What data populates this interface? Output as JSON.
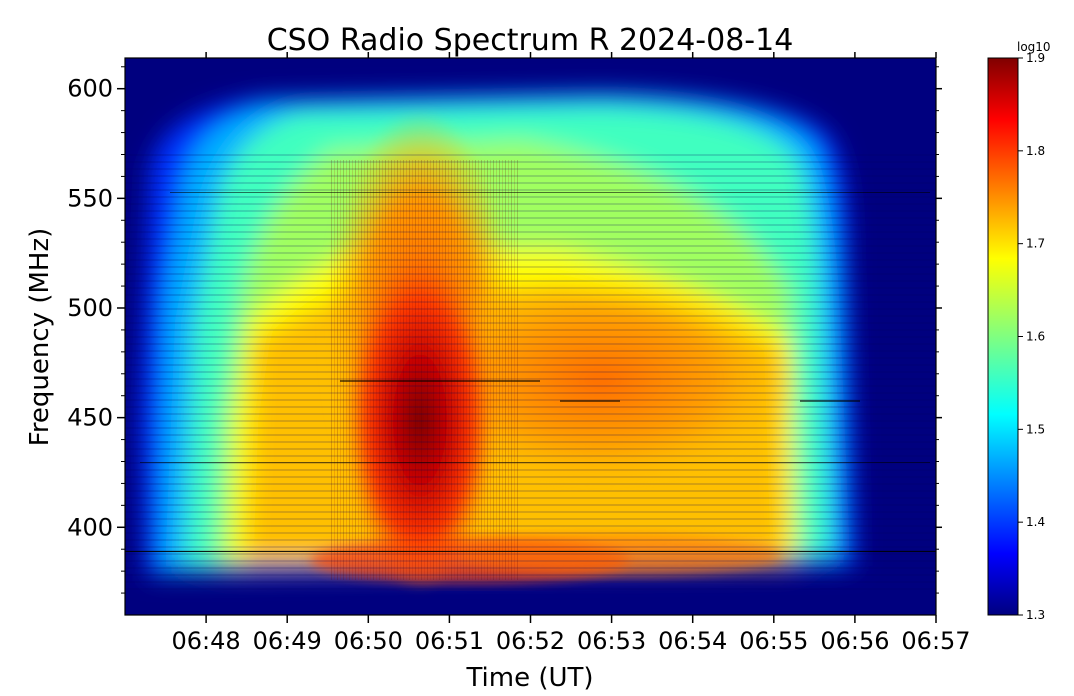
{
  "chart_data": {
    "type": "heatmap",
    "title": "CSO Radio Spectrum R 2024-08-14",
    "xlabel": "Time (UT)",
    "ylabel": "Frequency (MHz)",
    "x_ticks": [
      "06:48",
      "06:49",
      "06:50",
      "06:51",
      "06:52",
      "06:53",
      "06:54",
      "06:55",
      "06:56",
      "06:57"
    ],
    "y_ticks": [
      400,
      450,
      500,
      550,
      600
    ],
    "ylim": [
      360,
      614
    ],
    "xlim_minutes": [
      47.0,
      57.0
    ],
    "colorbar": {
      "label": "log10",
      "ticks": [
        1.3,
        1.4,
        1.5,
        1.6,
        1.7,
        1.8,
        1.9
      ],
      "range": [
        1.3,
        1.9
      ],
      "colormap": "jet"
    },
    "hline_frequency": 389
  }
}
